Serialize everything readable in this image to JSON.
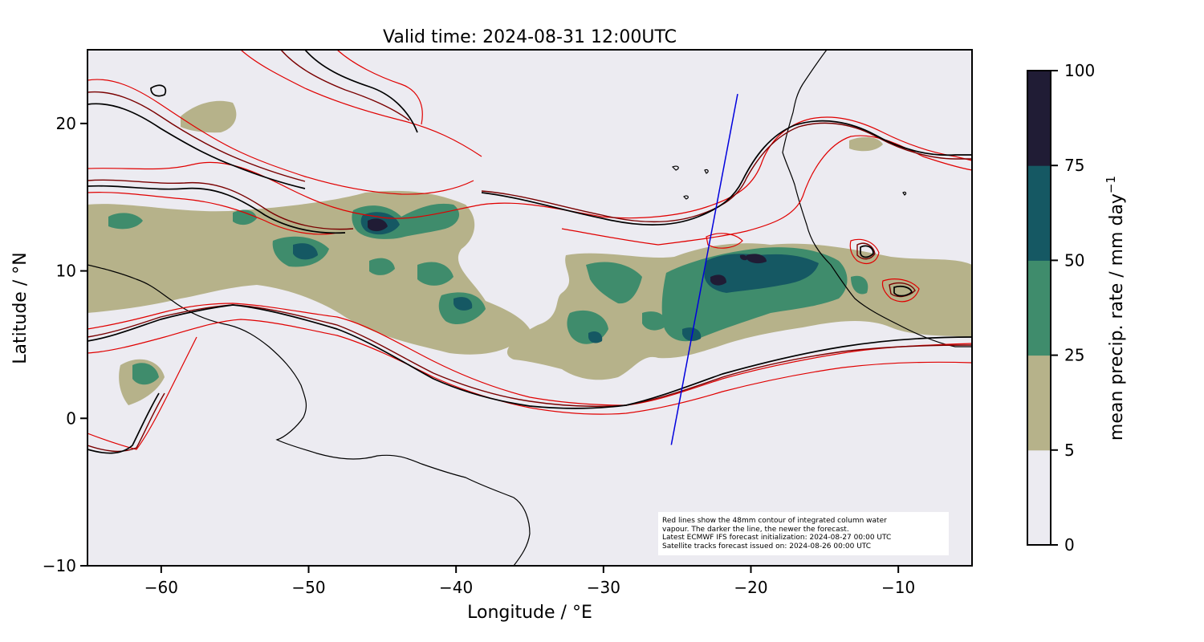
{
  "title": "Valid time: 2024-08-31 12:00UTC",
  "map": {
    "extent": {
      "lon": [
        -65,
        -5
      ],
      "lat": [
        -10,
        25
      ]
    },
    "xlabel": "Longitude / °E",
    "ylabel": "Latitude / °N",
    "x_ticks": [
      {
        "value": -60,
        "label": "−60"
      },
      {
        "value": -50,
        "label": "−50"
      },
      {
        "value": -40,
        "label": "−40"
      },
      {
        "value": -30,
        "label": "−30"
      },
      {
        "value": -20,
        "label": "−20"
      },
      {
        "value": -10,
        "label": "−10"
      }
    ],
    "y_ticks": [
      {
        "value": -10,
        "label": "−10"
      },
      {
        "value": 0,
        "label": "0"
      },
      {
        "value": 10,
        "label": "10"
      },
      {
        "value": 20,
        "label": "20"
      }
    ],
    "background_color": "#ecebf1",
    "satellite_track": {
      "color": "#0000dd",
      "points": [
        [
          -25.4,
          -1.8
        ],
        [
          -20.9,
          22.0
        ]
      ]
    }
  },
  "colorbar": {
    "label_prefix": "mean precip. rate / mm day",
    "label_exponent": "−1",
    "levels": [
      {
        "value": 0,
        "label": "0"
      },
      {
        "value": 5,
        "label": "5"
      },
      {
        "value": 25,
        "label": "25"
      },
      {
        "value": 50,
        "label": "50"
      },
      {
        "value": 75,
        "label": "75"
      },
      {
        "value": 100,
        "label": "100"
      }
    ],
    "colors": [
      "#ecebf1",
      "#b6b28a",
      "#3f8c6c",
      "#155863",
      "#201c35"
    ]
  },
  "note": {
    "line1": "Red lines show the 48mm contour of integrated column water",
    "line2": "vapour. The darker the line, the newer the forecast.",
    "line3": "Latest ECMWF IFS forecast initialization: 2024-08-27 00:00 UTC",
    "line4": "Satellite tracks forecast issued on: 2024-08-26 00:00 UTC"
  }
}
